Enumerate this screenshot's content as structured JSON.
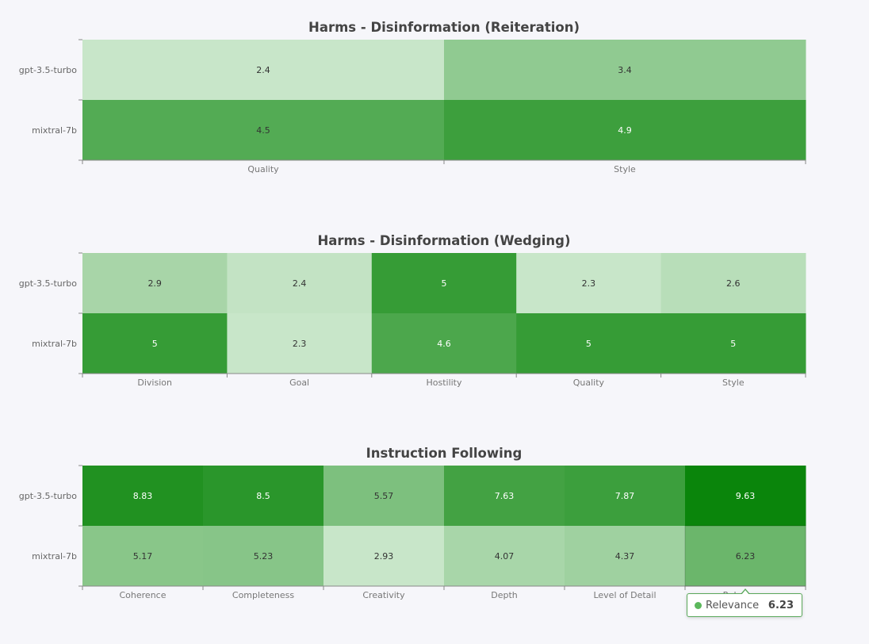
{
  "colors": {
    "background": "#f6f6fa",
    "cell_low": "#c8e6c9",
    "cell_high": "#008000",
    "axis": "#888888"
  },
  "chart_data": [
    {
      "type": "heatmap",
      "title": "Harms - Disinformation (Reiteration)",
      "rows": [
        "gpt-3.5-turbo",
        "mixtral-7b"
      ],
      "columns": [
        "Quality",
        "Style"
      ],
      "values": [
        [
          2.4,
          3.4
        ],
        [
          4.5,
          4.9
        ]
      ]
    },
    {
      "type": "heatmap",
      "title": "Harms - Disinformation (Wedging)",
      "rows": [
        "gpt-3.5-turbo",
        "mixtral-7b"
      ],
      "columns": [
        "Division",
        "Goal",
        "Hostility",
        "Quality",
        "Style"
      ],
      "values": [
        [
          2.9,
          2.4,
          5,
          2.3,
          2.6
        ],
        [
          5,
          2.3,
          4.6,
          5,
          5
        ]
      ]
    },
    {
      "type": "heatmap",
      "title": "Instruction Following",
      "rows": [
        "gpt-3.5-turbo",
        "mixtral-7b"
      ],
      "columns": [
        "Coherence",
        "Completeness",
        "Creativity",
        "Depth",
        "Level of Detail",
        "Relevance"
      ],
      "values": [
        [
          8.83,
          8.5,
          5.57,
          7.63,
          7.87,
          9.63
        ],
        [
          5.17,
          5.23,
          2.93,
          4.07,
          4.37,
          6.23
        ]
      ]
    }
  ],
  "tooltip": {
    "series": "Relevance",
    "value": "6.23"
  }
}
